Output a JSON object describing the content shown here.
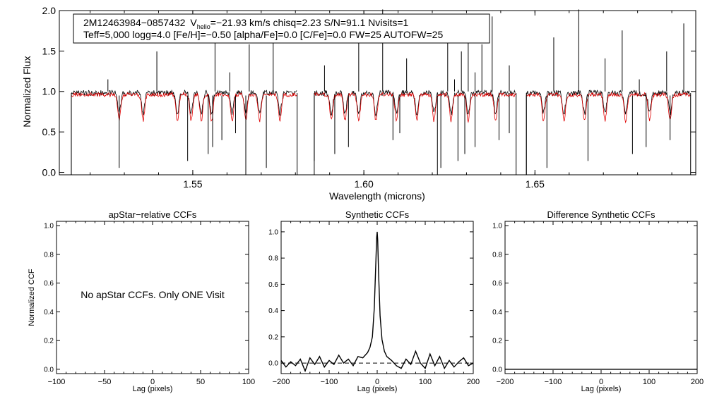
{
  "chart_data": [
    {
      "type": "line",
      "id": "spectrum",
      "ylabel": "Normalized Flux",
      "xlabel": "Wavelength (microns)",
      "xlim": [
        1.511,
        1.697
      ],
      "ylim": [
        -0.03,
        2.0
      ],
      "xticks": [
        1.55,
        1.6,
        1.65
      ],
      "xtick_labels": [
        "1.55",
        "1.60",
        "1.65"
      ],
      "yticks": [
        0.0,
        0.5,
        1.0,
        1.5,
        2.0
      ],
      "ytick_labels": [
        "0.0",
        "0.5",
        "1.0",
        "1.5",
        "2.0"
      ],
      "info": {
        "line1_star": "2M12463984−0857432",
        "line1_v": "V",
        "line1_v_sub": "helio",
        "line1_rest": "=−21.93 km/s  chisq=2.23  S/N=91.1  Nvisits=1",
        "line2": "Teff=5,000 logg=4.0 [Fe/H]=−0.50 [alpha/Fe]=0.0 [C/Fe]=0.0 FW=25 AUTOFW=25"
      },
      "chips": [
        [
          1.5145,
          1.5805
        ],
        [
          1.5855,
          1.6445
        ],
        [
          1.6475,
          1.6955
        ]
      ],
      "series": [
        {
          "name": "observed spectrum",
          "color": "#000000",
          "sharp_spikes": [
            1.5252,
            1.5395,
            1.5565,
            1.5608,
            1.5665,
            1.5735,
            1.5885,
            1.5985,
            1.6055,
            1.6125,
            1.6245,
            1.6265,
            1.6285,
            1.6305,
            1.6325,
            1.6345,
            1.6375,
            1.6425,
            1.6555,
            1.6628,
            1.6705,
            1.6755,
            1.6805,
            1.6885,
            1.6935
          ],
          "sharp_dips": [
            1.5145,
            1.5285,
            1.5485,
            1.5545,
            1.5558,
            1.5585,
            1.5625,
            1.5655,
            1.5715,
            1.5855,
            1.5915,
            1.5955,
            1.6085,
            1.6105,
            1.6215,
            1.6225,
            1.6275,
            1.6295,
            1.6325,
            1.6395,
            1.6425,
            1.6475,
            1.6535,
            1.6655,
            1.6785,
            1.6825,
            1.6895
          ]
        },
        {
          "name": "synthetic model",
          "color": "#e00000",
          "absorption_lines": [
            1.5285,
            1.5355,
            1.5455,
            1.5495,
            1.5525,
            1.5555,
            1.5615,
            1.5655,
            1.5695,
            1.5755,
            1.5905,
            1.5945,
            1.5985,
            1.6035,
            1.6095,
            1.6155,
            1.6205,
            1.6255,
            1.6305,
            1.6385,
            1.6525,
            1.6585,
            1.6645,
            1.6705,
            1.6765,
            1.6835,
            1.6895
          ]
        }
      ]
    },
    {
      "type": "line",
      "id": "apstar_ccf",
      "title": "apStar−relative CCFs",
      "ylabel": "Normalized CCF",
      "xlabel": "Lag (pixels)",
      "xlim": [
        -100,
        100
      ],
      "ylim": [
        -0.03,
        1.03
      ],
      "xticks": [
        -100,
        -50,
        0,
        50,
        100
      ],
      "xtick_labels": [
        "−100",
        "−50",
        "0",
        "50",
        "100"
      ],
      "yticks": [
        0.0,
        0.2,
        0.4,
        0.6,
        0.8,
        1.0
      ],
      "ytick_labels": [
        "0.0",
        "0.2",
        "0.4",
        "0.6",
        "0.8",
        "1.0"
      ],
      "annotation": "No apStar CCFs.  Only ONE Visit",
      "series": []
    },
    {
      "type": "line",
      "id": "synthetic_ccf",
      "title": "Synthetic CCFs",
      "xlabel": "Lag (pixels)",
      "xlim": [
        -200,
        200
      ],
      "ylim": [
        -0.08,
        1.08
      ],
      "xticks": [
        -200,
        -100,
        0,
        100,
        200
      ],
      "xtick_labels": [
        "−200",
        "−100",
        "0",
        "100",
        "200"
      ],
      "yticks": [
        0.0,
        0.2,
        0.4,
        0.6,
        0.8,
        1.0
      ],
      "ytick_labels": [
        "0.0",
        "0.2",
        "0.4",
        "0.6",
        "0.8",
        "1.0"
      ],
      "reference_line_y": 0.0,
      "series": [
        {
          "name": "CCF",
          "color": "#000000",
          "x": [
            -200,
            -190,
            -180,
            -170,
            -160,
            -150,
            -140,
            -130,
            -120,
            -110,
            -100,
            -90,
            -80,
            -70,
            -60,
            -50,
            -40,
            -30,
            -20,
            -15,
            -10,
            -6,
            -3,
            -1,
            0,
            1,
            3,
            6,
            10,
            15,
            20,
            30,
            40,
            50,
            60,
            70,
            80,
            90,
            100,
            110,
            120,
            130,
            140,
            150,
            160,
            170,
            180,
            190,
            200
          ],
          "y": [
            0.02,
            -0.03,
            0.01,
            -0.02,
            0.03,
            -0.06,
            0.04,
            -0.01,
            0.05,
            -0.03,
            0.02,
            -0.01,
            0.06,
            0.0,
            0.03,
            -0.02,
            0.05,
            0.04,
            0.08,
            0.12,
            0.2,
            0.42,
            0.75,
            0.96,
            1.0,
            0.94,
            0.68,
            0.36,
            0.18,
            0.09,
            0.05,
            0.02,
            -0.02,
            -0.04,
            0.03,
            -0.01,
            0.09,
            0.0,
            -0.04,
            0.07,
            -0.02,
            0.05,
            -0.04,
            0.02,
            -0.03,
            0.01,
            0.04,
            -0.02,
            0.0
          ]
        }
      ]
    },
    {
      "type": "line",
      "id": "difference_ccf",
      "title": "Difference Synthetic CCFs",
      "xlabel": "Lag (pixels)",
      "xlim": [
        -200,
        200
      ],
      "ylim": [
        -0.03,
        1.03
      ],
      "xticks": [
        -200,
        -100,
        0,
        100,
        200
      ],
      "xtick_labels": [
        "−200",
        "−100",
        "0",
        "100",
        "200"
      ],
      "yticks": [
        0.0,
        0.2,
        0.4,
        0.6,
        0.8,
        1.0
      ],
      "ytick_labels": [
        "0.0",
        "0.2",
        "0.4",
        "0.6",
        "0.8",
        "1.0"
      ],
      "series": [
        {
          "name": "difference",
          "color": "#000000",
          "x": [
            -200,
            200
          ],
          "y": [
            0.0,
            0.0
          ]
        }
      ]
    }
  ]
}
